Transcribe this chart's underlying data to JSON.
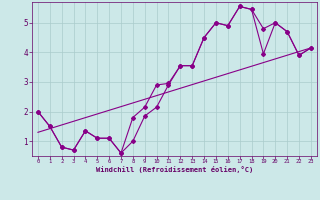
{
  "xlabel": "Windchill (Refroidissement éolien,°C)",
  "bg_color": "#cce8e8",
  "line_color": "#880088",
  "grid_color": "#aacccc",
  "text_color": "#660066",
  "axis_color": "#660066",
  "xlim": [
    -0.5,
    23.5
  ],
  "ylim": [
    0.5,
    5.7
  ],
  "xticks": [
    0,
    1,
    2,
    3,
    4,
    5,
    6,
    7,
    8,
    9,
    10,
    11,
    12,
    13,
    14,
    15,
    16,
    17,
    18,
    19,
    20,
    21,
    22,
    23
  ],
  "yticks": [
    1,
    2,
    3,
    4,
    5
  ],
  "line1_x": [
    0,
    1,
    2,
    3,
    4,
    5,
    6,
    7,
    8,
    9,
    10,
    11,
    12,
    13,
    14,
    15,
    16,
    17,
    18,
    19,
    20,
    21,
    22,
    23
  ],
  "line1_y": [
    2.0,
    1.5,
    0.8,
    0.7,
    1.35,
    1.1,
    1.1,
    0.6,
    1.8,
    2.15,
    2.9,
    2.95,
    3.55,
    3.55,
    4.5,
    5.0,
    4.9,
    5.55,
    5.45,
    3.95,
    5.0,
    4.7,
    3.9,
    4.15
  ],
  "line2_x": [
    0,
    1,
    2,
    3,
    4,
    5,
    6,
    7,
    8,
    9,
    10,
    11,
    12,
    13,
    14,
    15,
    16,
    17,
    18,
    19,
    20,
    21,
    22,
    23
  ],
  "line2_y": [
    2.0,
    1.5,
    0.8,
    0.7,
    1.35,
    1.1,
    1.1,
    0.6,
    1.0,
    1.85,
    2.15,
    2.9,
    3.55,
    3.55,
    4.5,
    5.0,
    4.9,
    5.55,
    5.45,
    4.8,
    5.0,
    4.7,
    3.9,
    4.15
  ],
  "line3_x": [
    0,
    23
  ],
  "line3_y": [
    1.3,
    4.15
  ]
}
